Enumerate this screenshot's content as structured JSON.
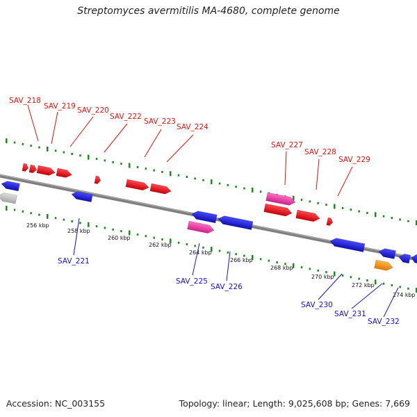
{
  "title": "Streptomyces avermitilis MA-4680, complete genome",
  "accession": "Accession: NC_003155",
  "summary": "Topology: linear; Length: 9,025,608 bp; Genes: 7,669",
  "colors": {
    "forward": "#e8141c",
    "reverse": "#1a1ae0",
    "magenta": "#e83aa8",
    "orange": "#f5921e",
    "gray": "#bfbfbf",
    "backbone": "#7f7f7f",
    "dotted_track": "#1f8a1f",
    "label_fwd": "#e01010",
    "label_rev": "#1010c8",
    "kbp_text": "#111111"
  },
  "kbp_ticks": [
    "256 kbp",
    "258 kbp",
    "260 kbp",
    "262 kbp",
    "264 kbp",
    "266 kbp",
    "268 kbp",
    "270 kbp",
    "272 kbp",
    "274 kbp"
  ],
  "forward_genes": [
    {
      "id": "SAV_218",
      "color": "forward"
    },
    {
      "id": "SAV_219",
      "color": "forward"
    },
    {
      "id": "SAV_220",
      "color": "forward"
    },
    {
      "id": "SAV_222",
      "color": "forward"
    },
    {
      "id": "SAV_223",
      "color": "forward"
    },
    {
      "id": "SAV_224",
      "color": "forward"
    },
    {
      "id": "SAV_227",
      "color": "magenta"
    },
    {
      "id": "SAV_228",
      "color": "forward"
    },
    {
      "id": "SAV_229",
      "color": "forward"
    }
  ],
  "reverse_genes": [
    {
      "id": "SAV_221",
      "color": "reverse"
    },
    {
      "id": "SAV_225",
      "color": "magenta"
    },
    {
      "id": "SAV_226",
      "color": "reverse"
    },
    {
      "id": "SAV_230",
      "color": "reverse"
    },
    {
      "id": "SAV_231",
      "color": "orange"
    },
    {
      "id": "SAV_232",
      "color": "reverse"
    }
  ]
}
